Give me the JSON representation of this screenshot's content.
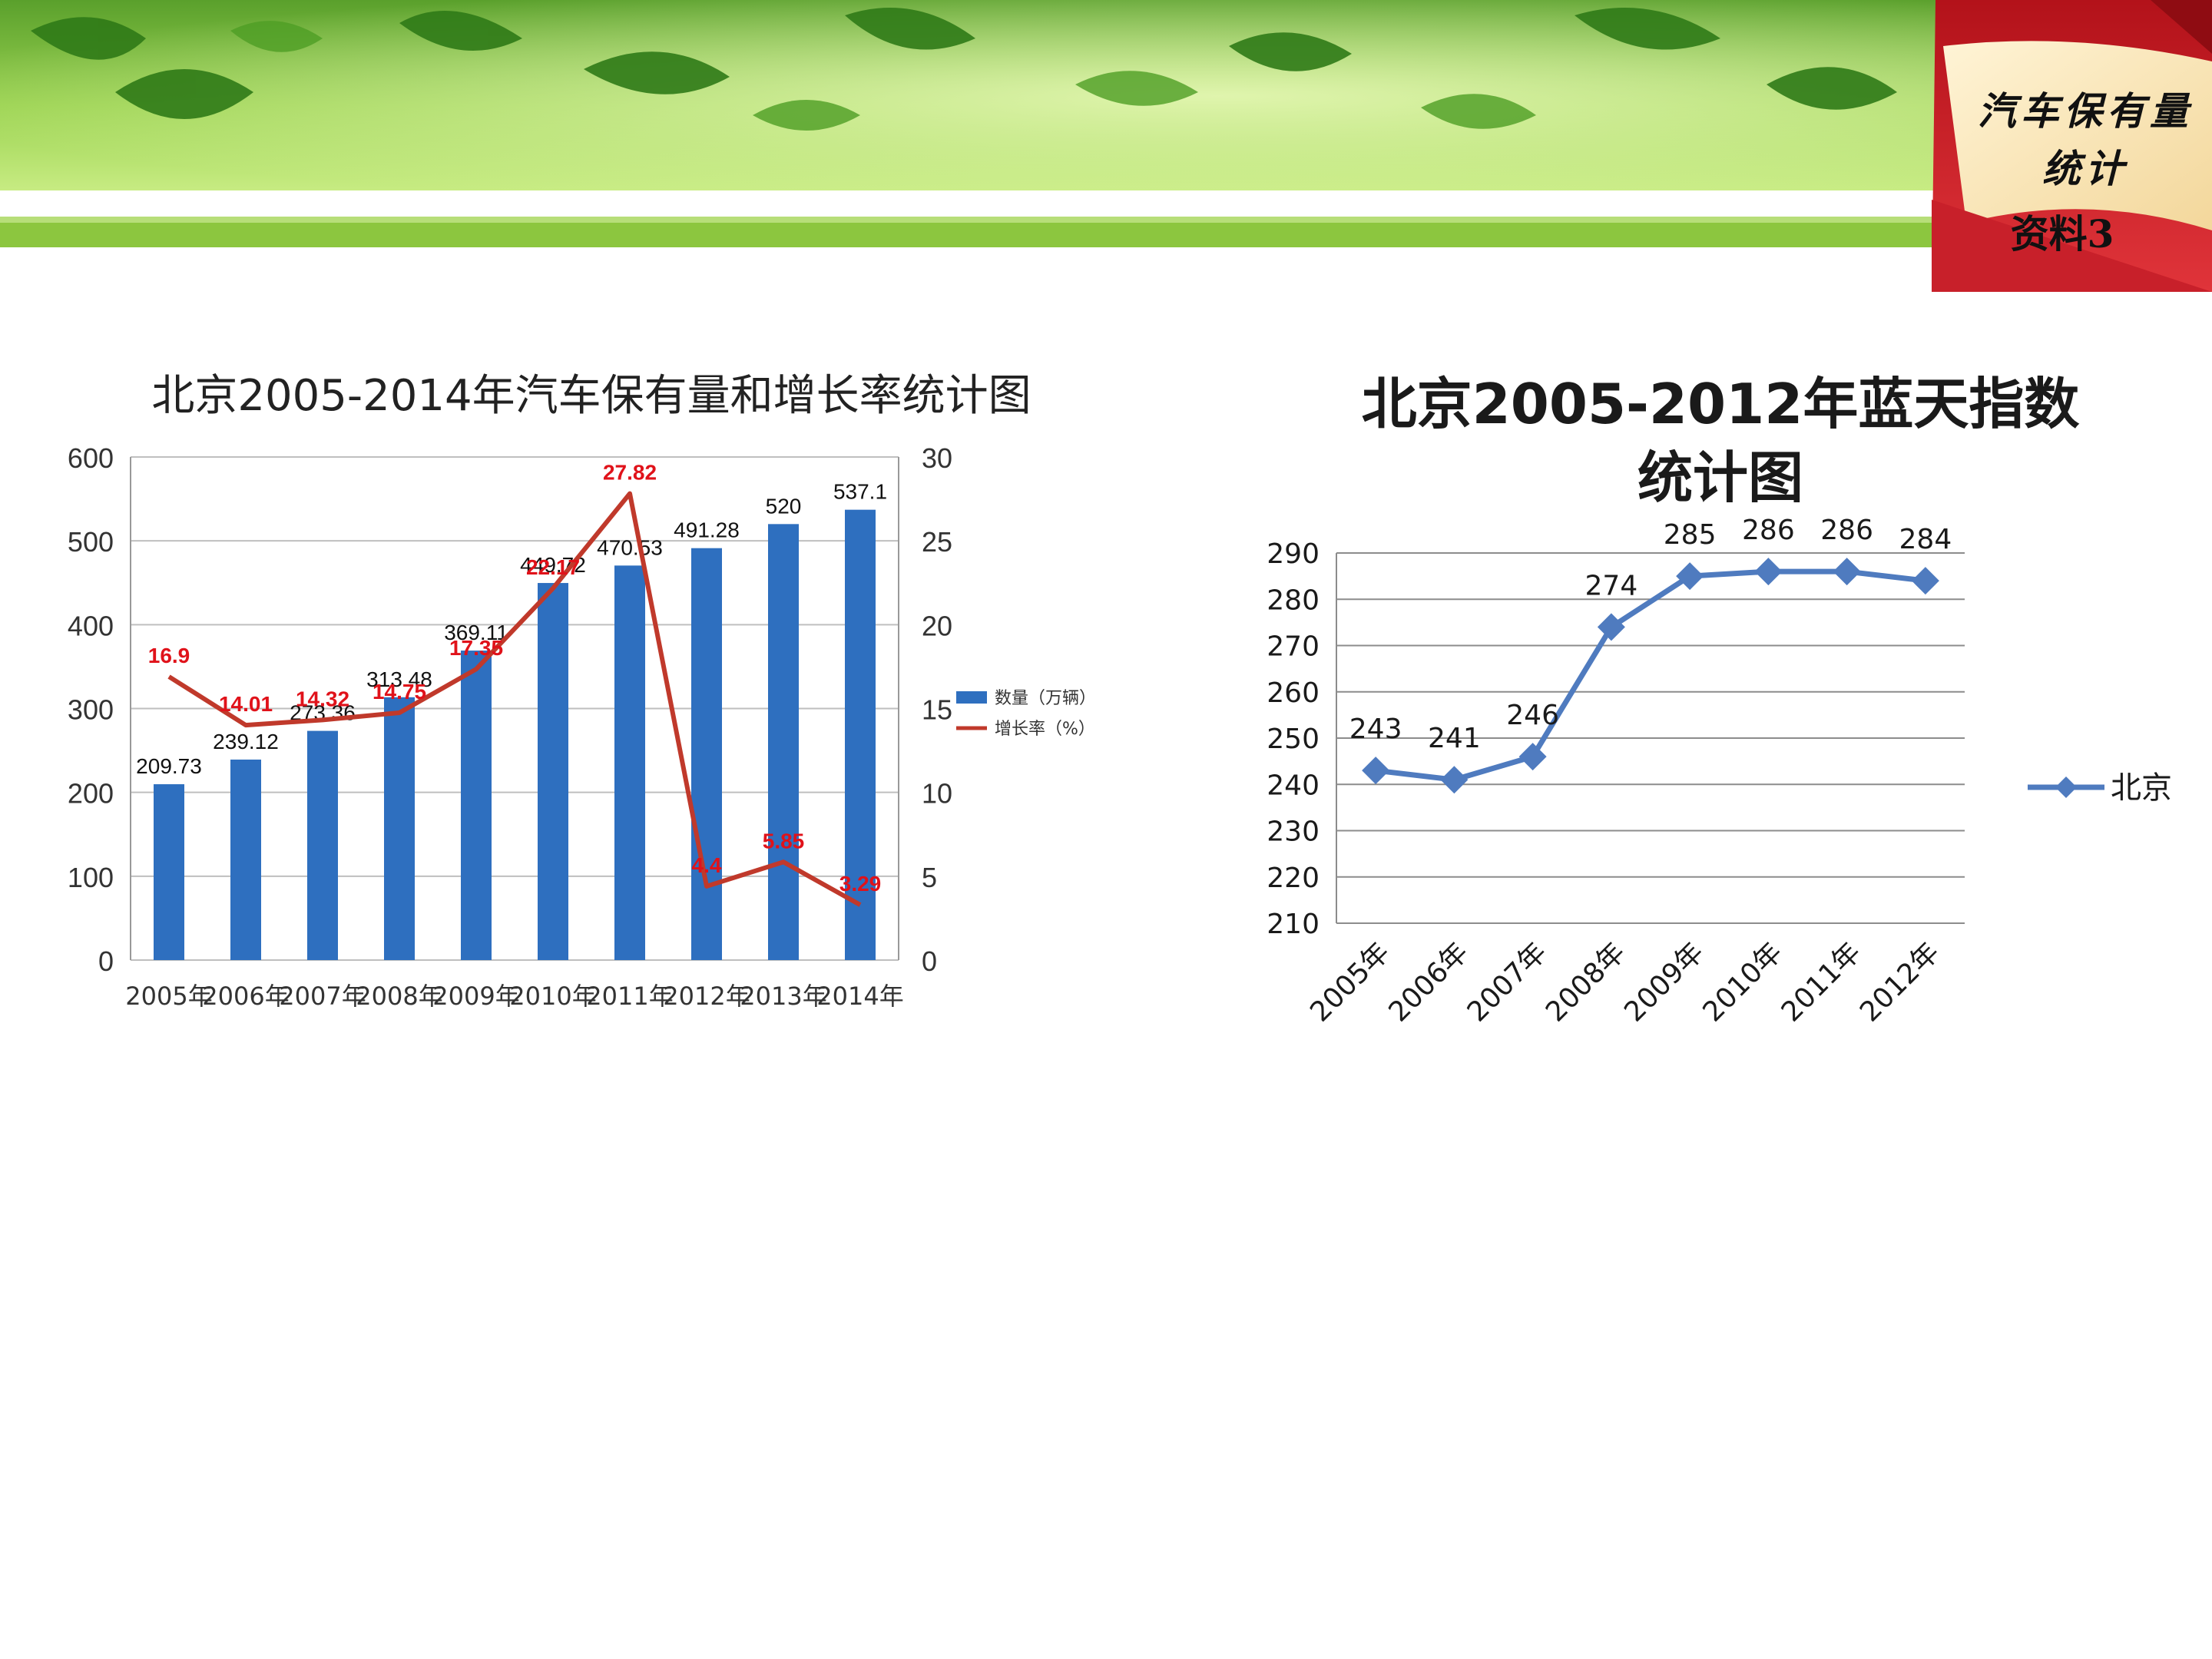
{
  "header": {
    "corner_title_line1": "汽车保有量",
    "corner_title_line2": "统计",
    "corner_subtitle": "资料3"
  },
  "colors": {
    "bar": "#2e6fbf",
    "growth_line": "#c0392b",
    "bar_label": "#111111",
    "growth_label": "#e0121a",
    "line2": "#4f7bbf",
    "grid": "#bfbfbf",
    "banner_green_dark": "#3f8a22",
    "banner_green_light": "#9ed64f",
    "tag_red": "#d7282f"
  },
  "chart_data": [
    {
      "type": "bar",
      "title": "北京2005-2014年汽车保有量和增长率统计图",
      "categories": [
        "2005年",
        "2006年",
        "2007年",
        "2008年",
        "2009年",
        "2010年",
        "2011年",
        "2012年",
        "2013年",
        "2014年"
      ],
      "series": [
        {
          "name": "数量（万辆）",
          "kind": "bar",
          "axis": "left",
          "values": [
            209.73,
            239.12,
            273.36,
            313.48,
            369.11,
            449.72,
            470.53,
            491.28,
            520,
            537.1
          ],
          "labels": [
            "209.73",
            "239.12",
            "273.36",
            "313.48",
            "369.11",
            "449.72",
            "470.53",
            "491.28",
            "520",
            "537.1"
          ]
        },
        {
          "name": "增长率（%）",
          "kind": "line",
          "axis": "right",
          "values": [
            16.9,
            14.01,
            14.32,
            14.75,
            17.35,
            22.17,
            27.82,
            4.4,
            5.85,
            3.29
          ],
          "labels": [
            "16.9",
            "14.01",
            "14.32",
            "14.75",
            "17.35",
            "22.17",
            "27.82",
            "4.4",
            "5.85",
            "3.29"
          ]
        }
      ],
      "ylim": [
        0,
        600
      ],
      "yticks": [
        "0",
        "100",
        "200",
        "300",
        "400",
        "500",
        "600"
      ],
      "y2lim": [
        0,
        30
      ],
      "y2ticks": [
        "0",
        "5",
        "10",
        "15",
        "20",
        "25",
        "30"
      ],
      "grid": true,
      "legend_position": "right"
    },
    {
      "type": "line",
      "title_line1": "北京2005-2012年蓝天指数",
      "title_line2": "统计图",
      "categories": [
        "2005年",
        "2006年",
        "2007年",
        "2008年",
        "2009年",
        "2010年",
        "2011年",
        "2012年"
      ],
      "series": [
        {
          "name": "北京",
          "values": [
            243,
            241,
            246,
            274,
            285,
            286,
            286,
            284
          ],
          "labels": [
            "243",
            "241",
            "246",
            "274",
            "285",
            "286",
            "286",
            "284"
          ]
        }
      ],
      "ylim": [
        210,
        290
      ],
      "yticks": [
        "210",
        "220",
        "230",
        "240",
        "250",
        "260",
        "270",
        "280",
        "290"
      ],
      "grid": true,
      "legend_position": "right"
    }
  ]
}
